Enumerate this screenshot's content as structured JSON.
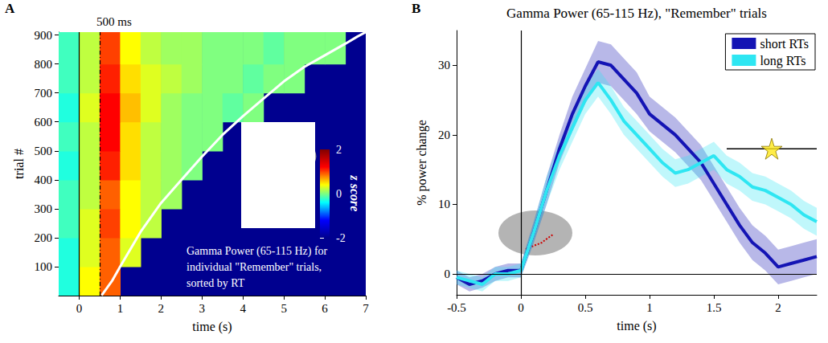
{
  "chart_data": [
    {
      "panel": "A",
      "type": "heatmap",
      "xlabel": "time (s)",
      "ylabel": "trial #",
      "xlim": [
        -0.5,
        7
      ],
      "xticks": [
        0,
        1,
        2,
        3,
        4,
        5,
        6,
        7
      ],
      "ylim": [
        0,
        910
      ],
      "yticks": [
        100,
        200,
        300,
        400,
        500,
        600,
        700,
        800,
        900
      ],
      "annotation": "Gamma Power (65-115 Hz) for\nindividual \"Remember\" trials,\nsorted by RT",
      "x_edges": [
        -0.5,
        0,
        0.5,
        1,
        1.5,
        2,
        2.5,
        3,
        3.5,
        4,
        4.5,
        5,
        5.5,
        6,
        6.5,
        7
      ],
      "y_edges": [
        0,
        100,
        200,
        300,
        400,
        500,
        600,
        700,
        800,
        910
      ],
      "z": [
        [
          -0.3,
          0.4,
          0.9,
          null,
          null,
          null,
          null,
          null,
          null,
          null,
          null,
          null,
          null,
          null,
          null
        ],
        [
          -0.3,
          0.3,
          0.9,
          0.3,
          null,
          null,
          null,
          null,
          null,
          null,
          null,
          null,
          null,
          null,
          null
        ],
        [
          -0.2,
          0.3,
          1.0,
          0.4,
          0.2,
          null,
          null,
          null,
          null,
          null,
          null,
          null,
          null,
          null,
          null
        ],
        [
          -0.2,
          0.2,
          0.9,
          0.4,
          0.2,
          0.1,
          null,
          null,
          null,
          null,
          null,
          null,
          null,
          null,
          null
        ],
        [
          -0.3,
          0.2,
          1.1,
          0.5,
          0.2,
          0.1,
          0.0,
          null,
          null,
          null,
          null,
          null,
          null,
          null,
          null
        ],
        [
          -0.2,
          0.2,
          1.2,
          0.5,
          0.2,
          0.1,
          0.0,
          0.0,
          null,
          null,
          null,
          null,
          null,
          null,
          null
        ],
        [
          -0.3,
          0.3,
          1.2,
          0.6,
          0.3,
          0.1,
          0.0,
          0.0,
          -0.1,
          0.0,
          null,
          null,
          null,
          null,
          null
        ],
        [
          -0.2,
          0.2,
          1.1,
          0.5,
          0.3,
          0.2,
          0.1,
          0.0,
          0.0,
          -0.1,
          0.0,
          0.0,
          null,
          null,
          null
        ],
        [
          -0.2,
          0.2,
          1.0,
          0.4,
          0.2,
          0.1,
          0.1,
          0.0,
          0.0,
          0.0,
          -0.1,
          0.0,
          0.0,
          0.0,
          null
        ]
      ],
      "colorbar": {
        "label": "z score",
        "range": [
          -2,
          2
        ],
        "ticks": [
          -2,
          0,
          2
        ],
        "colors": [
          "#00008f",
          "#0000ff",
          "#00ffff",
          "#ffff00",
          "#ff0000",
          "#800000"
        ]
      },
      "rt_curve": {
        "color": "#ffffff",
        "x": [
          0.55,
          0.8,
          1,
          1.5,
          2,
          2.5,
          3,
          3.5,
          4,
          4.5,
          5,
          5.5,
          6,
          6.5,
          6.8,
          7
        ],
        "y": [
          1,
          50,
          100,
          220,
          320,
          400,
          480,
          555,
          620,
          680,
          740,
          790,
          830,
          870,
          895,
          910
        ]
      },
      "vlines": [
        {
          "x": 0,
          "line_style": "solid"
        },
        {
          "x": 0.5,
          "line_style": "dashed",
          "label": "500 ms"
        }
      ]
    },
    {
      "panel": "B",
      "type": "line",
      "title": "Gamma Power (65-115 Hz), \"Remember\" trials",
      "xlabel": "time (s)",
      "ylabel": "% power change",
      "xlim": [
        -0.5,
        2.3
      ],
      "xticks": [
        -0.5,
        0,
        0.5,
        1,
        1.5,
        2
      ],
      "ylim": [
        -3,
        35
      ],
      "yticks": [
        0,
        10,
        20,
        30
      ],
      "legend": "upper right",
      "x": [
        -0.5,
        -0.4,
        -0.3,
        -0.2,
        -0.1,
        0,
        0.1,
        0.2,
        0.3,
        0.4,
        0.5,
        0.6,
        0.7,
        0.8,
        0.9,
        1.0,
        1.1,
        1.2,
        1.3,
        1.4,
        1.5,
        1.6,
        1.7,
        1.8,
        1.9,
        2.0,
        2.1,
        2.2,
        2.3
      ],
      "series": [
        {
          "name": "short RTs",
          "color": "#1414b4",
          "values": [
            -0.5,
            -1.5,
            -1,
            0,
            0.5,
            0.5,
            6,
            12,
            18,
            23,
            27,
            30.5,
            30,
            28,
            26,
            23,
            21.5,
            20,
            18,
            16,
            13,
            10,
            7,
            4.5,
            3,
            1,
            1.5,
            2,
            2.5
          ],
          "error": [
            1,
            1,
            1,
            1,
            1,
            1,
            1.5,
            2,
            2,
            2.5,
            2.5,
            3,
            3,
            3,
            3,
            2.5,
            2.5,
            2.5,
            2.5,
            2.5,
            2.5,
            2.5,
            2.5,
            2.5,
            2.5,
            2.5,
            2.5,
            2.5,
            2.5
          ]
        },
        {
          "name": "long RTs",
          "color": "#2ee6f2",
          "values": [
            -0.5,
            -1,
            -1.5,
            0,
            0,
            0.5,
            6,
            12,
            17,
            21,
            25,
            27.5,
            25,
            22,
            20,
            18,
            16,
            14.5,
            15,
            16,
            17,
            15,
            14,
            12.5,
            12,
            11,
            10,
            8.5,
            7.5
          ],
          "error": [
            1,
            1,
            1,
            1,
            1,
            1,
            1.5,
            2,
            2,
            2,
            2,
            2,
            2,
            2,
            2,
            2,
            2,
            2,
            2,
            2,
            2,
            2,
            2,
            2,
            2,
            2,
            2,
            2,
            2
          ]
        }
      ],
      "hlines": [
        0
      ],
      "vlines": [
        0
      ],
      "significance": {
        "x": [
          1.6,
          2.3
        ],
        "y": 18,
        "marker": "star",
        "color": "#ffe81a"
      }
    }
  ]
}
